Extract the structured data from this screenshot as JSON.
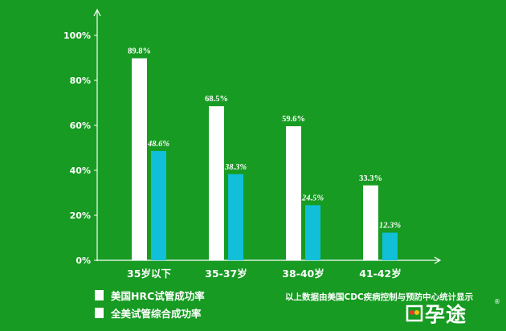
{
  "chart_data": {
    "type": "bar",
    "categories": [
      "35岁以下",
      "35-37岁",
      "38-40岁",
      "41-42岁"
    ],
    "series": [
      {
        "name": "美国HRC试管成功率",
        "values": [
          89.8,
          68.5,
          59.6,
          33.3
        ],
        "labels": [
          "89.8%",
          "68.5%",
          "59.6%",
          "33.3%"
        ],
        "color": "#ffffff"
      },
      {
        "name": "全美试管综合成功率",
        "values": [
          48.6,
          38.3,
          24.5,
          12.3
        ],
        "labels": [
          "48.6%",
          "38.3%",
          "24.5%",
          "12.3%"
        ],
        "color": "#12bfd8"
      }
    ],
    "ylim": [
      0,
      100
    ],
    "yticks": [
      "0%",
      "20%",
      "40%",
      "60%",
      "80%",
      "100%"
    ],
    "legend_position": "bottom-left",
    "grid": false
  },
  "source_note": "以上数据由美国CDC疾病控制与预防中心统计显示",
  "logo": {
    "text": "孕途",
    "mark": "®"
  },
  "colors": {
    "background": "#179b22",
    "axis": "#ffffff",
    "series_a": "#ffffff",
    "series_b": "#12bfd8"
  }
}
